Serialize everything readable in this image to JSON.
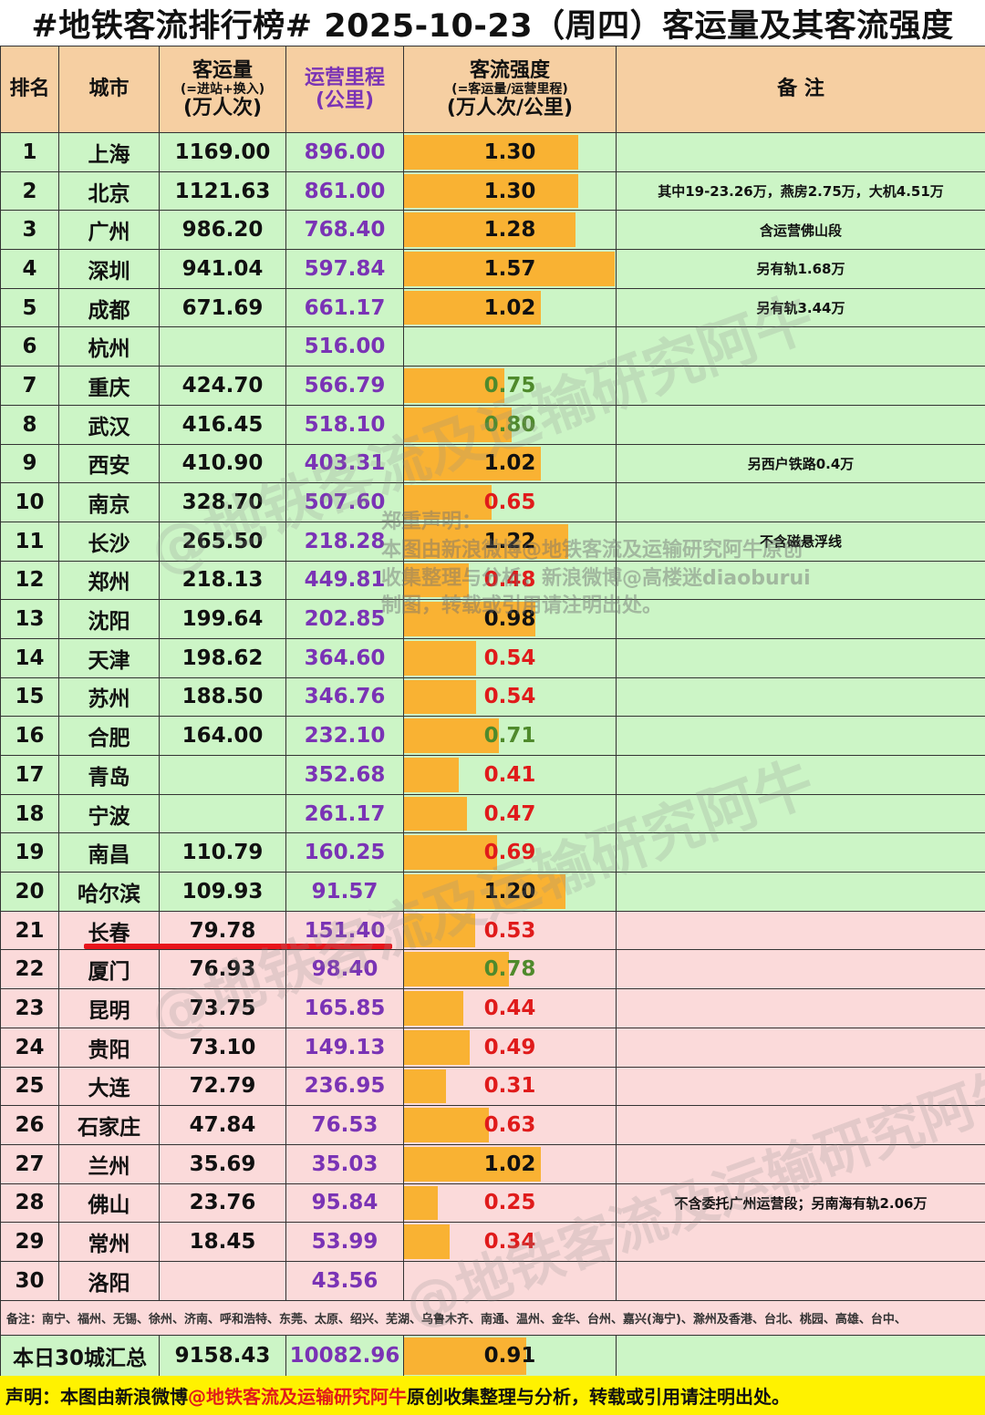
{
  "title": "#地铁客流排行榜# 2025-10-23（周四）客运量及其客流强度",
  "headers": {
    "rank": "排名",
    "city": "城市",
    "pax_line1": "客运量",
    "pax_line2": "(=进站+换入)",
    "pax_line3": "(万人次)",
    "km_line1": "运营里程",
    "km_line2": "(公里)",
    "int_line1": "客流强度",
    "int_line2": "(=客运量/运营里程)",
    "int_line3": "(万人次/公里)",
    "note": "备  注"
  },
  "colors": {
    "green_row": "#ccf5c6",
    "pink_row": "#fbdada",
    "header_bg": "#f6cfa2",
    "bar": "#f9b233",
    "km_text": "#7a33b5",
    "low_text": "#e01b1b",
    "mid_text": "#4f8a2c",
    "footer_bg": "#fff200"
  },
  "rows": [
    {
      "rank": "1",
      "city": "上海",
      "pax": "1169.00",
      "km": "896.00",
      "intensity": "1.30",
      "value": 1.3,
      "note": "",
      "group": "green"
    },
    {
      "rank": "2",
      "city": "北京",
      "pax": "1121.63",
      "km": "861.00",
      "intensity": "1.30",
      "value": 1.3,
      "note": "其中19-23.26万，燕房2.75万，大机4.51万",
      "group": "green"
    },
    {
      "rank": "3",
      "city": "广州",
      "pax": "986.20",
      "km": "768.40",
      "intensity": "1.28",
      "value": 1.28,
      "note": "含运营佛山段",
      "group": "green"
    },
    {
      "rank": "4",
      "city": "深圳",
      "pax": "941.04",
      "km": "597.84",
      "intensity": "1.57",
      "value": 1.57,
      "note": "另有轨1.68万",
      "group": "green"
    },
    {
      "rank": "5",
      "city": "成都",
      "pax": "671.69",
      "km": "661.17",
      "intensity": "1.02",
      "value": 1.02,
      "note": "另有轨3.44万",
      "group": "green"
    },
    {
      "rank": "6",
      "city": "杭州",
      "pax": "",
      "km": "516.00",
      "intensity": "",
      "value": 0,
      "note": "",
      "group": "green"
    },
    {
      "rank": "7",
      "city": "重庆",
      "pax": "424.70",
      "km": "566.79",
      "intensity": "0.75",
      "value": 0.75,
      "note": "",
      "group": "green"
    },
    {
      "rank": "8",
      "city": "武汉",
      "pax": "416.45",
      "km": "518.10",
      "intensity": "0.80",
      "value": 0.8,
      "note": "",
      "group": "green"
    },
    {
      "rank": "9",
      "city": "西安",
      "pax": "410.90",
      "km": "403.31",
      "intensity": "1.02",
      "value": 1.02,
      "note": "另西户铁路0.4万",
      "group": "green"
    },
    {
      "rank": "10",
      "city": "南京",
      "pax": "328.70",
      "km": "507.60",
      "intensity": "0.65",
      "value": 0.65,
      "note": "",
      "group": "green"
    },
    {
      "rank": "11",
      "city": "长沙",
      "pax": "265.50",
      "km": "218.28",
      "intensity": "1.22",
      "value": 1.22,
      "note": "不含磁悬浮线",
      "group": "green"
    },
    {
      "rank": "12",
      "city": "郑州",
      "pax": "218.13",
      "km": "449.81",
      "intensity": "0.48",
      "value": 0.48,
      "note": "",
      "group": "green"
    },
    {
      "rank": "13",
      "city": "沈阳",
      "pax": "199.64",
      "km": "202.85",
      "intensity": "0.98",
      "value": 0.98,
      "note": "",
      "group": "green"
    },
    {
      "rank": "14",
      "city": "天津",
      "pax": "198.62",
      "km": "364.60",
      "intensity": "0.54",
      "value": 0.54,
      "note": "",
      "group": "green"
    },
    {
      "rank": "15",
      "city": "苏州",
      "pax": "188.50",
      "km": "346.76",
      "intensity": "0.54",
      "value": 0.54,
      "note": "",
      "group": "green"
    },
    {
      "rank": "16",
      "city": "合肥",
      "pax": "164.00",
      "km": "232.10",
      "intensity": "0.71",
      "value": 0.71,
      "note": "",
      "group": "green"
    },
    {
      "rank": "17",
      "city": "青岛",
      "pax": "",
      "km": "352.68",
      "intensity": "0.41",
      "value": 0.41,
      "note": "",
      "group": "green"
    },
    {
      "rank": "18",
      "city": "宁波",
      "pax": "",
      "km": "261.17",
      "intensity": "0.47",
      "value": 0.47,
      "note": "",
      "group": "green"
    },
    {
      "rank": "19",
      "city": "南昌",
      "pax": "110.79",
      "km": "160.25",
      "intensity": "0.69",
      "value": 0.69,
      "note": "",
      "group": "green"
    },
    {
      "rank": "20",
      "city": "哈尔滨",
      "pax": "109.93",
      "km": "91.57",
      "intensity": "1.20",
      "value": 1.2,
      "note": "",
      "group": "green"
    },
    {
      "rank": "21",
      "city": "长春",
      "pax": "79.78",
      "km": "151.40",
      "intensity": "0.53",
      "value": 0.53,
      "note": "",
      "group": "pink"
    },
    {
      "rank": "22",
      "city": "厦门",
      "pax": "76.93",
      "km": "98.40",
      "intensity": "0.78",
      "value": 0.78,
      "note": "",
      "group": "pink"
    },
    {
      "rank": "23",
      "city": "昆明",
      "pax": "73.75",
      "km": "165.85",
      "intensity": "0.44",
      "value": 0.44,
      "note": "",
      "group": "pink"
    },
    {
      "rank": "24",
      "city": "贵阳",
      "pax": "73.10",
      "km": "149.13",
      "intensity": "0.49",
      "value": 0.49,
      "note": "",
      "group": "pink"
    },
    {
      "rank": "25",
      "city": "大连",
      "pax": "72.79",
      "km": "236.95",
      "intensity": "0.31",
      "value": 0.31,
      "note": "",
      "group": "pink"
    },
    {
      "rank": "26",
      "city": "石家庄",
      "pax": "47.84",
      "km": "76.53",
      "intensity": "0.63",
      "value": 0.63,
      "note": "",
      "group": "pink"
    },
    {
      "rank": "27",
      "city": "兰州",
      "pax": "35.69",
      "km": "35.03",
      "intensity": "1.02",
      "value": 1.02,
      "note": "",
      "group": "pink"
    },
    {
      "rank": "28",
      "city": "佛山",
      "pax": "23.76",
      "km": "95.84",
      "intensity": "0.25",
      "value": 0.25,
      "note": "不含委托广州运营段；另南海有轨2.06万",
      "group": "pink"
    },
    {
      "rank": "29",
      "city": "常州",
      "pax": "18.45",
      "km": "53.99",
      "intensity": "0.34",
      "value": 0.34,
      "note": "",
      "group": "pink"
    },
    {
      "rank": "30",
      "city": "洛阳",
      "pax": "",
      "km": "43.56",
      "intensity": "",
      "value": 0,
      "note": "",
      "group": "pink"
    }
  ],
  "bar_scale_max": 1.57,
  "remark": "备注：南宁、福州、无锡、徐州、济南、呼和浩特、东莞、太原、绍兴、芜湖、乌鲁木齐、南通、温州、金华、台州、嘉兴(海宁)、滁州及香港、台北、桃园、高雄、台中、",
  "summary": {
    "label": "本日30城汇总",
    "pax": "9158.43",
    "km": "10082.96",
    "intensity": "0.91",
    "value": 0.91
  },
  "footer": {
    "prefix": "声明：本图由新浪微博",
    "highlight": "@地铁客流及运输研究阿牛",
    "suffix": " 原创收集整理与分析，转载或引用请注明出处。"
  },
  "watermark": "@地铁客流及运输研究阿牛",
  "notice": {
    "line1": "郑重声明：",
    "line2": "本图由新浪微博@地铁客流及运输研究阿牛原创",
    "line3": "收集整理与分析，新浪微博@高楼迷diaoburui",
    "line4": "制图，转载或引用请注明出处。"
  }
}
